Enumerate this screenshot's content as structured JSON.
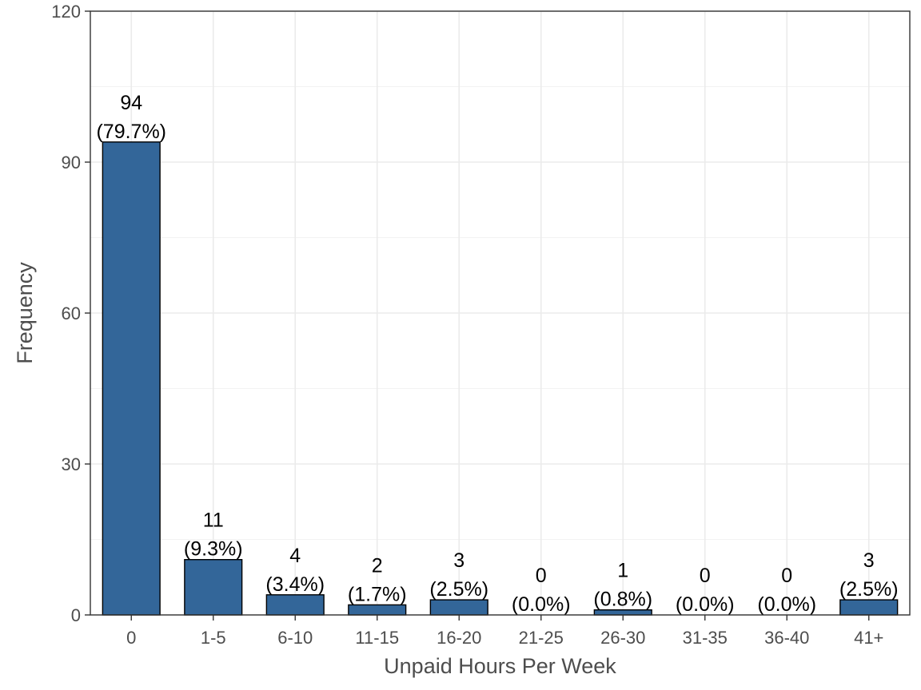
{
  "chart_data": {
    "type": "bar",
    "categories": [
      "0",
      "1-5",
      "6-10",
      "11-15",
      "16-20",
      "21-25",
      "26-30",
      "31-35",
      "36-40",
      "41+"
    ],
    "values": [
      94,
      11,
      4,
      2,
      3,
      0,
      1,
      0,
      0,
      3
    ],
    "labels": [
      "(79.7%)",
      "(9.3%)",
      "(3.4%)",
      "(1.7%)",
      "(2.5%)",
      "(0.0%)",
      "(0.8%)",
      "(0.0%)",
      "(0.0%)",
      "(2.5%)"
    ],
    "xlabel": "Unpaid Hours Per Week",
    "ylabel": "Frequency",
    "ylim": [
      0,
      120
    ],
    "yticks": [
      0,
      30,
      60,
      90,
      120
    ],
    "grid": true,
    "bar_color": "#336699"
  }
}
